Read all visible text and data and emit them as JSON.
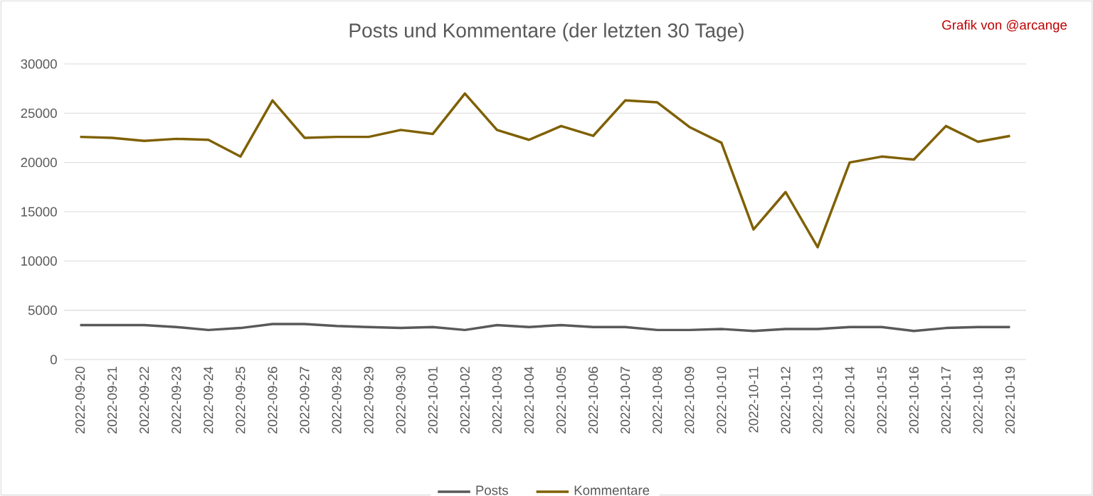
{
  "chart_data": {
    "type": "line",
    "title": "Posts und Kommentare (der letzten 30 Tage)",
    "annotations": [
      "Grafik von @arcange"
    ],
    "categories": [
      "2022-09-20",
      "2022-09-21",
      "2022-09-22",
      "2022-09-23",
      "2022-09-24",
      "2022-09-25",
      "2022-09-26",
      "2022-09-27",
      "2022-09-28",
      "2022-09-29",
      "2022-09-30",
      "2022-10-01",
      "2022-10-02",
      "2022-10-03",
      "2022-10-04",
      "2022-10-05",
      "2022-10-06",
      "2022-10-07",
      "2022-10-08",
      "2022-10-09",
      "2022-10-10",
      "2022-10-11",
      "2022-10-12",
      "2022-10-13",
      "2022-10-14",
      "2022-10-15",
      "2022-10-16",
      "2022-10-17",
      "2022-10-18",
      "2022-10-19"
    ],
    "series": [
      {
        "name": "Posts",
        "color": "#595959",
        "values": [
          3500,
          3500,
          3500,
          3300,
          3000,
          3200,
          3600,
          3600,
          3400,
          3300,
          3200,
          3300,
          3000,
          3500,
          3300,
          3500,
          3300,
          3300,
          3000,
          3000,
          3100,
          2900,
          3100,
          3100,
          3300,
          3300,
          2900,
          3200,
          3300,
          3300
        ]
      },
      {
        "name": "Kommentare",
        "color": "#7f6000",
        "values": [
          22600,
          22500,
          22200,
          22400,
          22300,
          20600,
          26300,
          22500,
          22600,
          22600,
          23300,
          22900,
          27000,
          23300,
          22300,
          23700,
          22700,
          26300,
          26100,
          23600,
          22000,
          13200,
          17000,
          11400,
          20000,
          20600,
          20300,
          23700,
          22100,
          22700
        ]
      }
    ],
    "ylim": [
      0,
      30000
    ],
    "yticks": [
      0,
      5000,
      10000,
      15000,
      20000,
      25000,
      30000
    ],
    "grid": "y",
    "legend": "bottom",
    "marker": "none",
    "line_style": "solid"
  }
}
